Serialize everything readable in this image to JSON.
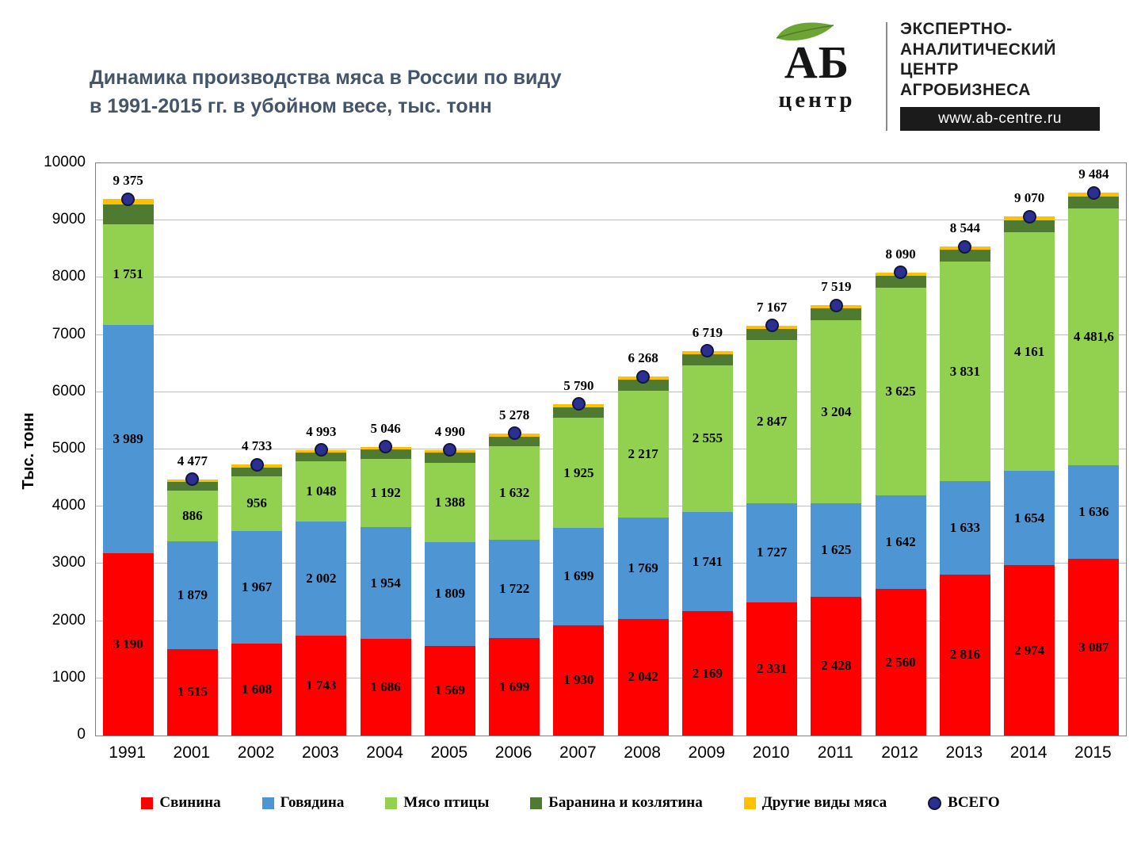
{
  "header": {
    "title_line1": "Динамика производства мяса в России по виду",
    "title_line2": "в 1991-2015 гг. в убойном весе, тыс. тонн"
  },
  "logo": {
    "ab": "АБ",
    "centre": "центр",
    "org_lines": [
      "ЭКСПЕРТНО-",
      "АНАЛИТИЧЕСКИЙ",
      "ЦЕНТР",
      "АГРОБИЗНЕСА"
    ],
    "url": "www.ab-centre.ru",
    "leaf_color": "#6CA534"
  },
  "chart_data": {
    "type": "bar",
    "subtype": "stacked-bar-with-total-markers",
    "title": "Динамика производства мяса в России по виду в 1991-2015 гг. в убойном весе, тыс. тонн",
    "ylabel": "Тыс.  тонн",
    "ylim": [
      0,
      10000
    ],
    "ytick_step": 1000,
    "grid": true,
    "legend_position": "bottom",
    "categories": [
      "1991",
      "2001",
      "2002",
      "2003",
      "2004",
      "2005",
      "2006",
      "2007",
      "2008",
      "2009",
      "2010",
      "2011",
      "2012",
      "2013",
      "2014",
      "2015"
    ],
    "series": [
      {
        "name": "Свинина",
        "color": "#FF0000",
        "values": [
          3190,
          1515,
          1608,
          1743,
          1686,
          1569,
          1699,
          1930,
          2042,
          2169,
          2331,
          2428,
          2560,
          2816,
          2974,
          3087
        ],
        "labels": [
          "3 190",
          "1 515",
          "1 608",
          "1 743",
          "1 686",
          "1 569",
          "1 699",
          "1 930",
          "2 042",
          "2 169",
          "2 331",
          "2 428",
          "2 560",
          "2 816",
          "2 974",
          "3 087"
        ]
      },
      {
        "name": "Говядина",
        "color": "#4D96D3",
        "values": [
          3989,
          1879,
          1967,
          2002,
          1954,
          1809,
          1722,
          1699,
          1769,
          1741,
          1727,
          1625,
          1642,
          1633,
          1654,
          1636
        ],
        "labels": [
          "3 989",
          "1 879",
          "1 967",
          "2 002",
          "1 954",
          "1 809",
          "1 722",
          "1 699",
          "1 769",
          "1 741",
          "1 727",
          "1 625",
          "1 642",
          "1 633",
          "1 654",
          "1 636"
        ]
      },
      {
        "name": "Мясо птицы",
        "color": "#92D050",
        "values": [
          1751,
          886,
          956,
          1048,
          1192,
          1388,
          1632,
          1925,
          2217,
          2555,
          2847,
          3204,
          3625,
          3831,
          4161,
          4481.6
        ],
        "labels": [
          "1 751",
          "886",
          "956",
          "1 048",
          "1 192",
          "1 388",
          "1 632",
          "1 925",
          "2 217",
          "2 555",
          "2 847",
          "3 204",
          "3 625",
          "3 831",
          "4 161",
          "4 481,6"
        ]
      },
      {
        "name": "Баранина и козлятина",
        "color": "#4E7B2F",
        "values": null,
        "labels": null,
        "note": "segment shown without value labels; height = share of remainder to total"
      },
      {
        "name": "Другие виды мяса",
        "color": "#FFC000",
        "values": null,
        "labels": null,
        "note": "segment shown without value labels; height = share of remainder to total"
      }
    ],
    "totals": {
      "name": "ВСЕГО",
      "marker_color": "#2B2F90",
      "values": [
        9375,
        4477,
        4733,
        4993,
        5046,
        4990,
        5278,
        5790,
        6268,
        6719,
        7167,
        7519,
        8090,
        8544,
        9070,
        9484
      ],
      "labels": [
        "9 375",
        "4 477",
        "4 733",
        "4 993",
        "5 046",
        "4 990",
        "5 278",
        "5 790",
        "6 268",
        "6 719",
        "7 167",
        "7 519",
        "8 090",
        "8 544",
        "9 070",
        "9 484"
      ]
    }
  }
}
